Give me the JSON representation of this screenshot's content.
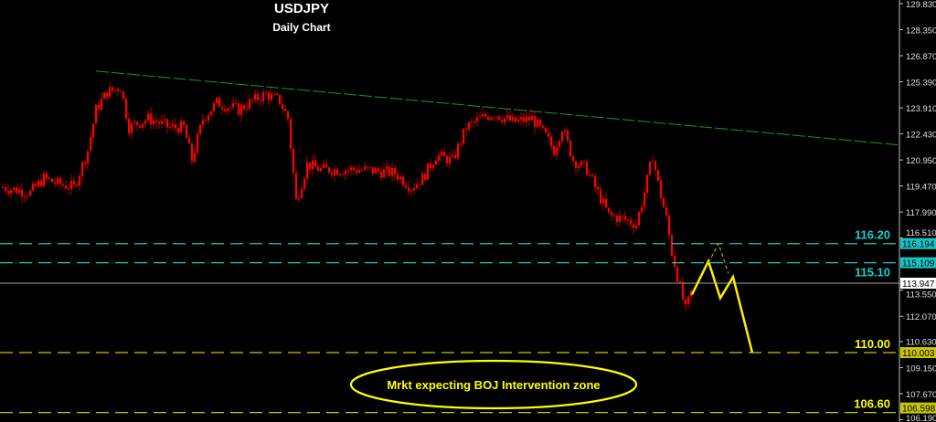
{
  "chart_data": {
    "type": "candlestick",
    "title": "USDJPY",
    "subtitle": "Daily Chart",
    "ylim": [
      106.19,
      129.83
    ],
    "y_ticks": [
      "129.830",
      "128.350",
      "126.870",
      "125.390",
      "123.910",
      "122.430",
      "120.950",
      "119.470",
      "117.990",
      "116.510",
      "113.550",
      "112.070",
      "110.630",
      "109.150",
      "107.670",
      "106.190"
    ],
    "grid": false,
    "bar_count": 252,
    "close_path": [
      {
        "bar": 0,
        "close": 119.4
      },
      {
        "bar": 10,
        "close": 119.1
      },
      {
        "bar": 15,
        "close": 119.9
      },
      {
        "bar": 20,
        "close": 119.6
      },
      {
        "bar": 26,
        "close": 119.4
      },
      {
        "bar": 31,
        "close": 121.5
      },
      {
        "bar": 34,
        "close": 123.8
      },
      {
        "bar": 38,
        "close": 124.8
      },
      {
        "bar": 43,
        "close": 125.1
      },
      {
        "bar": 46,
        "close": 122.8
      },
      {
        "bar": 53,
        "close": 123.3
      },
      {
        "bar": 61,
        "close": 122.8
      },
      {
        "bar": 66,
        "close": 122.8
      },
      {
        "bar": 69,
        "close": 120.95
      },
      {
        "bar": 73,
        "close": 123.3
      },
      {
        "bar": 78,
        "close": 124.2
      },
      {
        "bar": 86,
        "close": 123.8
      },
      {
        "bar": 91,
        "close": 124.3
      },
      {
        "bar": 96,
        "close": 124.7
      },
      {
        "bar": 101,
        "close": 124.3
      },
      {
        "bar": 104,
        "close": 123.3
      },
      {
        "bar": 107,
        "close": 118.6
      },
      {
        "bar": 111,
        "close": 120.7
      },
      {
        "bar": 116,
        "close": 120.4
      },
      {
        "bar": 123,
        "close": 120.4
      },
      {
        "bar": 131,
        "close": 120.4
      },
      {
        "bar": 143,
        "close": 120.2
      },
      {
        "bar": 149,
        "close": 119.4
      },
      {
        "bar": 153,
        "close": 119.9
      },
      {
        "bar": 158,
        "close": 121.2
      },
      {
        "bar": 164,
        "close": 120.9
      },
      {
        "bar": 169,
        "close": 122.8
      },
      {
        "bar": 174,
        "close": 123.3
      },
      {
        "bar": 179,
        "close": 123.6
      },
      {
        "bar": 186,
        "close": 123.1
      },
      {
        "bar": 193,
        "close": 123.3
      },
      {
        "bar": 198,
        "close": 122.3
      },
      {
        "bar": 201,
        "close": 121.5
      },
      {
        "bar": 204,
        "close": 122.8
      },
      {
        "bar": 208,
        "close": 120.95
      },
      {
        "bar": 213,
        "close": 120.4
      },
      {
        "bar": 216,
        "close": 119.4
      },
      {
        "bar": 221,
        "close": 117.8
      },
      {
        "bar": 226,
        "close": 117.6
      },
      {
        "bar": 231,
        "close": 117.3
      },
      {
        "bar": 234,
        "close": 119.1
      },
      {
        "bar": 237,
        "close": 121.2
      },
      {
        "bar": 239,
        "close": 119.6
      },
      {
        "bar": 242,
        "close": 117.6
      },
      {
        "bar": 244,
        "close": 115.7
      },
      {
        "bar": 247,
        "close": 113.7
      },
      {
        "bar": 249,
        "close": 112.4
      },
      {
        "bar": 251,
        "close": 113.4
      }
    ],
    "trendline": {
      "from": 126.0,
      "to": 121.8,
      "color": "#1a9a1a"
    },
    "levels": [
      {
        "label": "116.20",
        "tag": "116.194",
        "value": 116.194,
        "color": "#16c6c6",
        "style": "dashed"
      },
      {
        "label": "115.10",
        "tag": "115.109",
        "value": 115.109,
        "color": "#16c6c6",
        "style": "dashed"
      },
      {
        "label": "",
        "tag": "113.947",
        "value": 113.947,
        "color": "#808080",
        "style": "solid"
      },
      {
        "label": "110.00",
        "tag": "110.003",
        "value": 110.003,
        "color": "#c8c800",
        "style": "dashed"
      },
      {
        "label": "106.60",
        "tag": "106.598",
        "value": 106.598,
        "color": "#c8c800",
        "style": "dashed"
      }
    ],
    "projection": [
      113.3,
      115.2,
      113.1,
      114.3,
      110.0
    ],
    "projection_alt": [
      115.1,
      116.2,
      114.5
    ],
    "annotation": "Mrkt expecting BOJ Intervention zone",
    "colors": {
      "background": "#000000",
      "candle": "#ff0000",
      "projection": "#ffee00",
      "annotation": "#ffff00"
    }
  }
}
